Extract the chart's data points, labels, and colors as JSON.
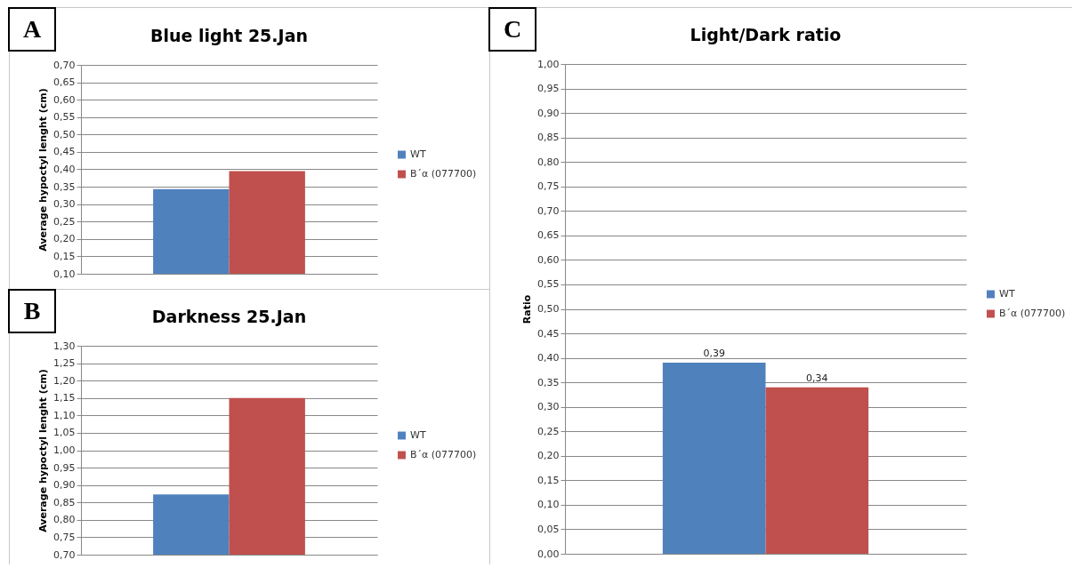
{
  "chart_data": [
    {
      "type": "bar",
      "title": "Blue light 25.Jan",
      "ylabel": "Average hypoctyl lenght (cm)",
      "annotations": [
        "A"
      ],
      "categories": [
        null
      ],
      "series": [
        {
          "name": "WT",
          "color": "#4f81bd",
          "values": [
            0.343
          ]
        },
        {
          "name": "B´α (077700)",
          "color": "#c0504d",
          "values": [
            0.395
          ]
        }
      ],
      "ylim": [
        0.1,
        0.7
      ],
      "yticks": [
        {
          "value": 0.1,
          "label": "0,10"
        },
        {
          "value": 0.15,
          "label": "0,15"
        },
        {
          "value": 0.2,
          "label": "0,20"
        },
        {
          "value": 0.25,
          "label": "0,25"
        },
        {
          "value": 0.3,
          "label": "0,30"
        },
        {
          "value": 0.35,
          "label": "0,35"
        },
        {
          "value": 0.4,
          "label": "0,40"
        },
        {
          "value": 0.45,
          "label": "0,45"
        },
        {
          "value": 0.5,
          "label": "0,50"
        },
        {
          "value": 0.55,
          "label": "0,55"
        },
        {
          "value": 0.6,
          "label": "0,60"
        },
        {
          "value": 0.65,
          "label": "0,65"
        },
        {
          "value": 0.7,
          "label": "0,70"
        }
      ],
      "grid": "y",
      "legend": "right"
    },
    {
      "type": "bar",
      "title": "Darkness 25.Jan",
      "ylabel": "Average hypoctyl lenght (cm)",
      "annotations": [
        "B"
      ],
      "categories": [
        null
      ],
      "series": [
        {
          "name": "WT",
          "color": "#4f81bd",
          "values": [
            0.873
          ]
        },
        {
          "name": "B´α (077700)",
          "color": "#c0504d",
          "values": [
            1.15
          ]
        }
      ],
      "ylim": [
        0.7,
        1.3
      ],
      "yticks": [
        {
          "value": 0.7,
          "label": "0,70"
        },
        {
          "value": 0.75,
          "label": "0,75"
        },
        {
          "value": 0.8,
          "label": "0,80"
        },
        {
          "value": 0.85,
          "label": "0,85"
        },
        {
          "value": 0.9,
          "label": "0,90"
        },
        {
          "value": 0.95,
          "label": "0,95"
        },
        {
          "value": 1.0,
          "label": "1,00"
        },
        {
          "value": 1.05,
          "label": "1,05"
        },
        {
          "value": 1.1,
          "label": "1,10"
        },
        {
          "value": 1.15,
          "label": "1,15"
        },
        {
          "value": 1.2,
          "label": "1,20"
        },
        {
          "value": 1.25,
          "label": "1,25"
        },
        {
          "value": 1.3,
          "label": "1,30"
        }
      ],
      "grid": "y",
      "legend": "right"
    },
    {
      "type": "bar",
      "title": "Light/Dark ratio",
      "ylabel": "Ratio",
      "annotations": [
        "C"
      ],
      "categories": [
        null
      ],
      "series": [
        {
          "name": "WT",
          "color": "#4f81bd",
          "values": [
            0.39
          ],
          "value_labels": [
            "0,39"
          ]
        },
        {
          "name": "B´α (077700)",
          "color": "#c0504d",
          "values": [
            0.34
          ],
          "value_labels": [
            "0,34"
          ]
        }
      ],
      "ylim": [
        0,
        1
      ],
      "yticks": [
        {
          "value": 0,
          "label": "0,00"
        },
        {
          "value": 0.05,
          "label": "0,05"
        },
        {
          "value": 0.1,
          "label": "0,10"
        },
        {
          "value": 0.15,
          "label": "0,15"
        },
        {
          "value": 0.2,
          "label": "0,20"
        },
        {
          "value": 0.25,
          "label": "0,25"
        },
        {
          "value": 0.3,
          "label": "0,30"
        },
        {
          "value": 0.35,
          "label": "0,35"
        },
        {
          "value": 0.4,
          "label": "0,40"
        },
        {
          "value": 0.45,
          "label": "0,45"
        },
        {
          "value": 0.5,
          "label": "0,50"
        },
        {
          "value": 0.55,
          "label": "0,55"
        },
        {
          "value": 0.6,
          "label": "0,60"
        },
        {
          "value": 0.65,
          "label": "0,65"
        },
        {
          "value": 0.7,
          "label": "0,70"
        },
        {
          "value": 0.75,
          "label": "0,75"
        },
        {
          "value": 0.8,
          "label": "0,80"
        },
        {
          "value": 0.85,
          "label": "0,85"
        },
        {
          "value": 0.9,
          "label": "0,90"
        },
        {
          "value": 0.95,
          "label": "0,95"
        },
        {
          "value": 1.0,
          "label": "1,00"
        }
      ],
      "grid": "y",
      "legend": "right"
    }
  ]
}
